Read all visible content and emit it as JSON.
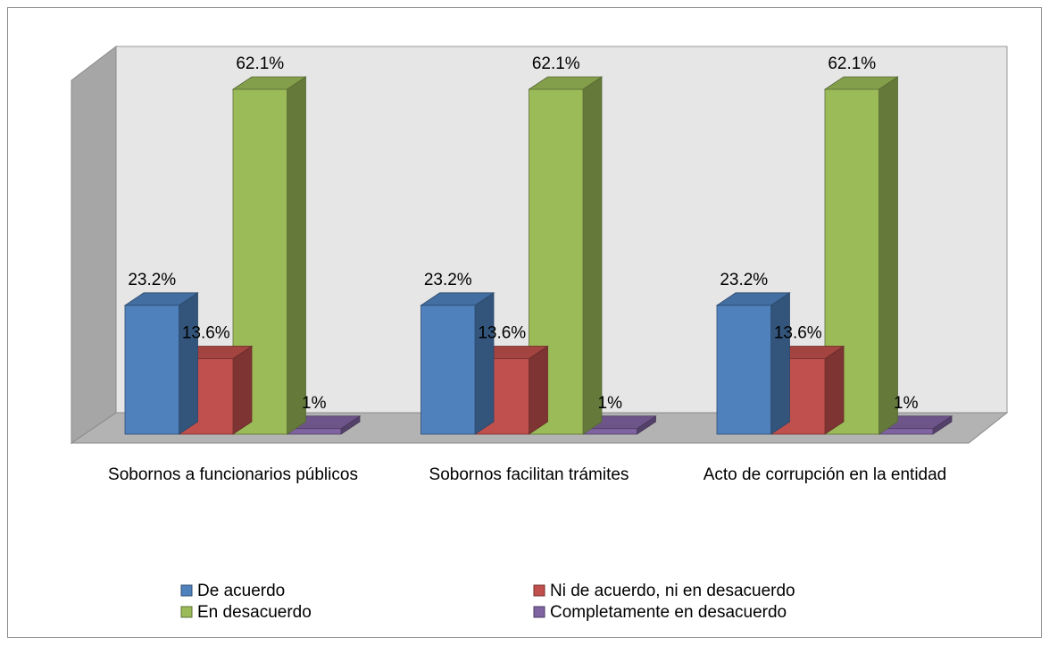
{
  "chart_data": {
    "type": "bar3d",
    "categories": [
      "Sobornos a funcionarios públicos",
      "Sobornos facilitan trámites",
      "Acto de corrupción en la entidad"
    ],
    "series": [
      {
        "name": "De acuerdo",
        "color": "#4f81bd",
        "values": [
          23.2,
          23.2,
          23.2
        ],
        "value_labels": [
          "23.2%",
          "23.2%",
          "23.2%"
        ]
      },
      {
        "name": "Ni de acuerdo, ni en desacuerdo",
        "color": "#c0504d",
        "values": [
          13.6,
          13.6,
          13.6
        ],
        "value_labels": [
          "13.6%",
          "13.6%",
          "13.6%"
        ]
      },
      {
        "name": "En desacuerdo",
        "color": "#9bbb59",
        "values": [
          62.1,
          62.1,
          62.1
        ],
        "value_labels": [
          "62.1%",
          "62.1%",
          "62.1%"
        ]
      },
      {
        "name": "Completamente en desacuerdo",
        "color": "#8064a2",
        "values": [
          1,
          1,
          1
        ],
        "value_labels": [
          "1%",
          "1%",
          "1%"
        ]
      }
    ],
    "legend": "bottom"
  }
}
